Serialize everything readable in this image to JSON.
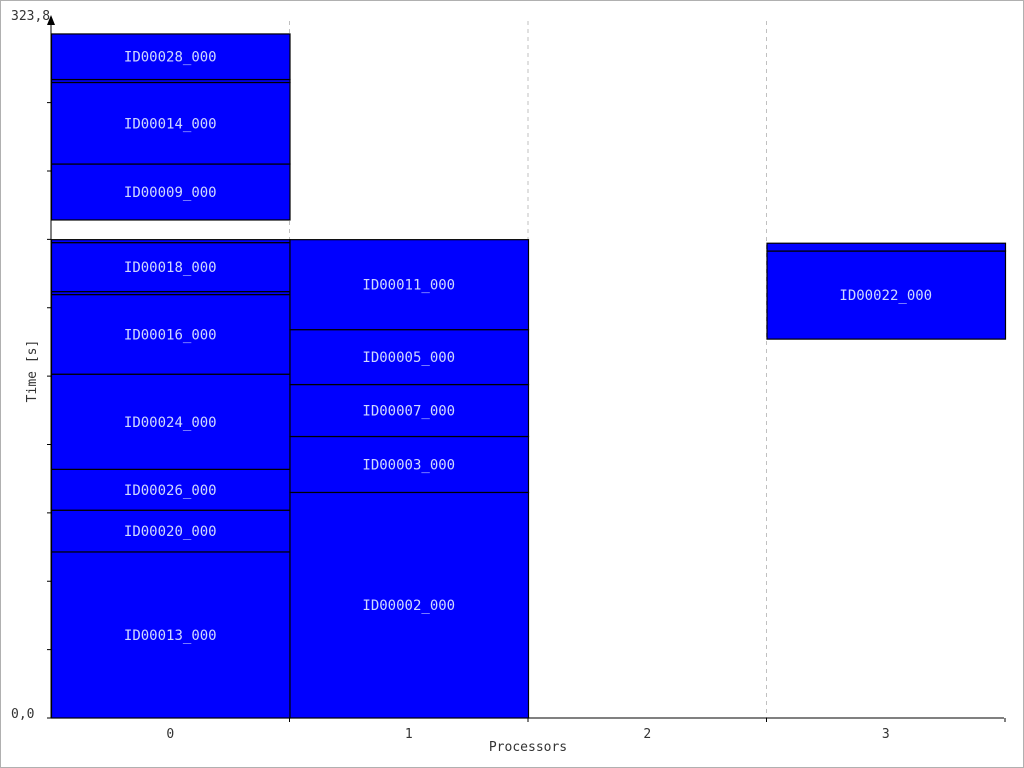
{
  "chart_data": {
    "type": "gantt",
    "xlabel": "Processors",
    "ylabel": "Time [s]",
    "ylim": [
      0,
      323.8
    ],
    "y_max_label": "323,8",
    "y_min_label": "0,0",
    "processors": [
      "0",
      "1",
      "2",
      "3"
    ],
    "grid": "vertical dashed lines between processors",
    "bar_color": "#0000ff",
    "tasks": [
      {
        "id": "t13",
        "label": "ID00013_000",
        "proc": 0,
        "start": 0.0,
        "end": 112.2
      },
      {
        "id": "t20",
        "label": "ID00020_000",
        "proc": 0,
        "start": 112.2,
        "end": 140.4
      },
      {
        "id": "t26",
        "label": "ID00026_000",
        "proc": 0,
        "start": 140.4,
        "end": 168.0
      },
      {
        "id": "t24",
        "label": "ID00024_000",
        "proc": 0,
        "start": 168.0,
        "end": 232.3
      },
      {
        "id": "t16",
        "label": "ID00016_000",
        "proc": 0,
        "start": 232.3,
        "end": 286.1
      },
      {
        "id": "t16b",
        "label": "",
        "proc": 0,
        "start": 286.1,
        "end": 288.1
      },
      {
        "id": "t18",
        "label": "ID00018_000",
        "proc": 0,
        "start": 288.1,
        "end": 321.2
      },
      {
        "id": "t18b",
        "label": "",
        "proc": 0,
        "start": 321.2,
        "end": 323.2
      },
      {
        "id": "t02",
        "label": "ID00002_000",
        "proc": 1,
        "start": 0.0,
        "end": 152.4
      },
      {
        "id": "t03",
        "label": "ID00003_000",
        "proc": 1,
        "start": 152.4,
        "end": 190.2
      },
      {
        "id": "t07",
        "label": "ID00007_000",
        "proc": 1,
        "start": 190.2,
        "end": 225.3
      },
      {
        "id": "t05",
        "label": "ID00005_000",
        "proc": 1,
        "start": 225.3,
        "end": 262.4
      },
      {
        "id": "t11",
        "label": "ID00011_000",
        "proc": 1,
        "start": 262.4,
        "end": 323.2
      },
      {
        "id": "t22",
        "label": "ID00022_000",
        "proc": 3,
        "start": 256.0,
        "end": 315.5
      },
      {
        "id": "t22b",
        "label": "",
        "proc": 3,
        "start": 315.5,
        "end": 320.8
      },
      {
        "id": "t09",
        "label": "ID00009_000",
        "proc": 0,
        "start": 336.5,
        "end": 374.3
      },
      {
        "id": "t14",
        "label": "ID00014_000",
        "proc": 0,
        "start": 374.3,
        "end": 429.4
      },
      {
        "id": "t14b",
        "label": "",
        "proc": 0,
        "start": 429.4,
        "end": 431.4
      },
      {
        "id": "t28",
        "label": "ID00028_000",
        "proc": 0,
        "start": 431.4,
        "end": 462.2
      }
    ]
  }
}
